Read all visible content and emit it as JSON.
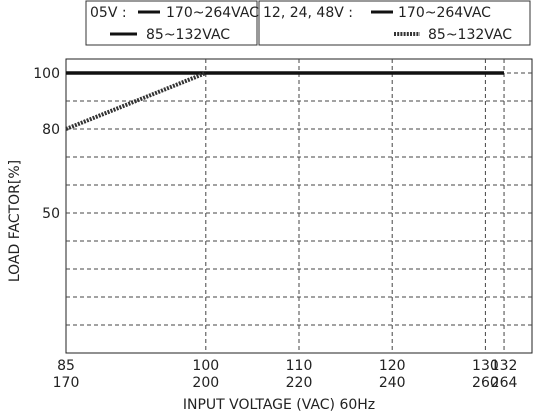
{
  "legend": {
    "group1": {
      "label": "05V :",
      "entries": [
        {
          "text": "170~264VAC",
          "style": "solid"
        },
        {
          "text": "85~132VAC",
          "style": "solid"
        }
      ]
    },
    "group2": {
      "label": "12, 24, 48V :",
      "entries": [
        {
          "text": "170~264VAC",
          "style": "solid"
        },
        {
          "text": "85~132VAC",
          "style": "dotted"
        }
      ]
    }
  },
  "chart_data": {
    "type": "line",
    "xlabel": "INPUT VOLTAGE (VAC) 60Hz",
    "ylabel": "LOAD FACTOR[%]",
    "x_ticks": [
      {
        "x": 85,
        "top": "85",
        "bottom": "170"
      },
      {
        "x": 100,
        "top": "100",
        "bottom": "200"
      },
      {
        "x": 110,
        "top": "110",
        "bottom": "220"
      },
      {
        "x": 120,
        "top": "120",
        "bottom": "240"
      },
      {
        "x": 130,
        "top": "130",
        "bottom": "260"
      },
      {
        "x": 132,
        "top": "132",
        "bottom": "264"
      }
    ],
    "x_gridlines": [
      100,
      110,
      120,
      130,
      132
    ],
    "xlim": [
      85,
      135
    ],
    "y_ticks": [
      {
        "y": 100,
        "label": "100"
      },
      {
        "y": 80,
        "label": "80"
      },
      {
        "y": 50,
        "label": "50"
      }
    ],
    "y_gridlines": [
      10,
      20,
      30,
      40,
      50,
      60,
      70,
      80,
      90,
      100
    ],
    "ylim": [
      0,
      105
    ],
    "grid": true,
    "series": [
      {
        "style": "solid",
        "color": "#111111",
        "points": [
          [
            85,
            100
          ],
          [
            132,
            100
          ]
        ]
      },
      {
        "style": "dotted",
        "color": "#333333",
        "points": [
          [
            85,
            80
          ],
          [
            100,
            100
          ]
        ]
      }
    ]
  }
}
